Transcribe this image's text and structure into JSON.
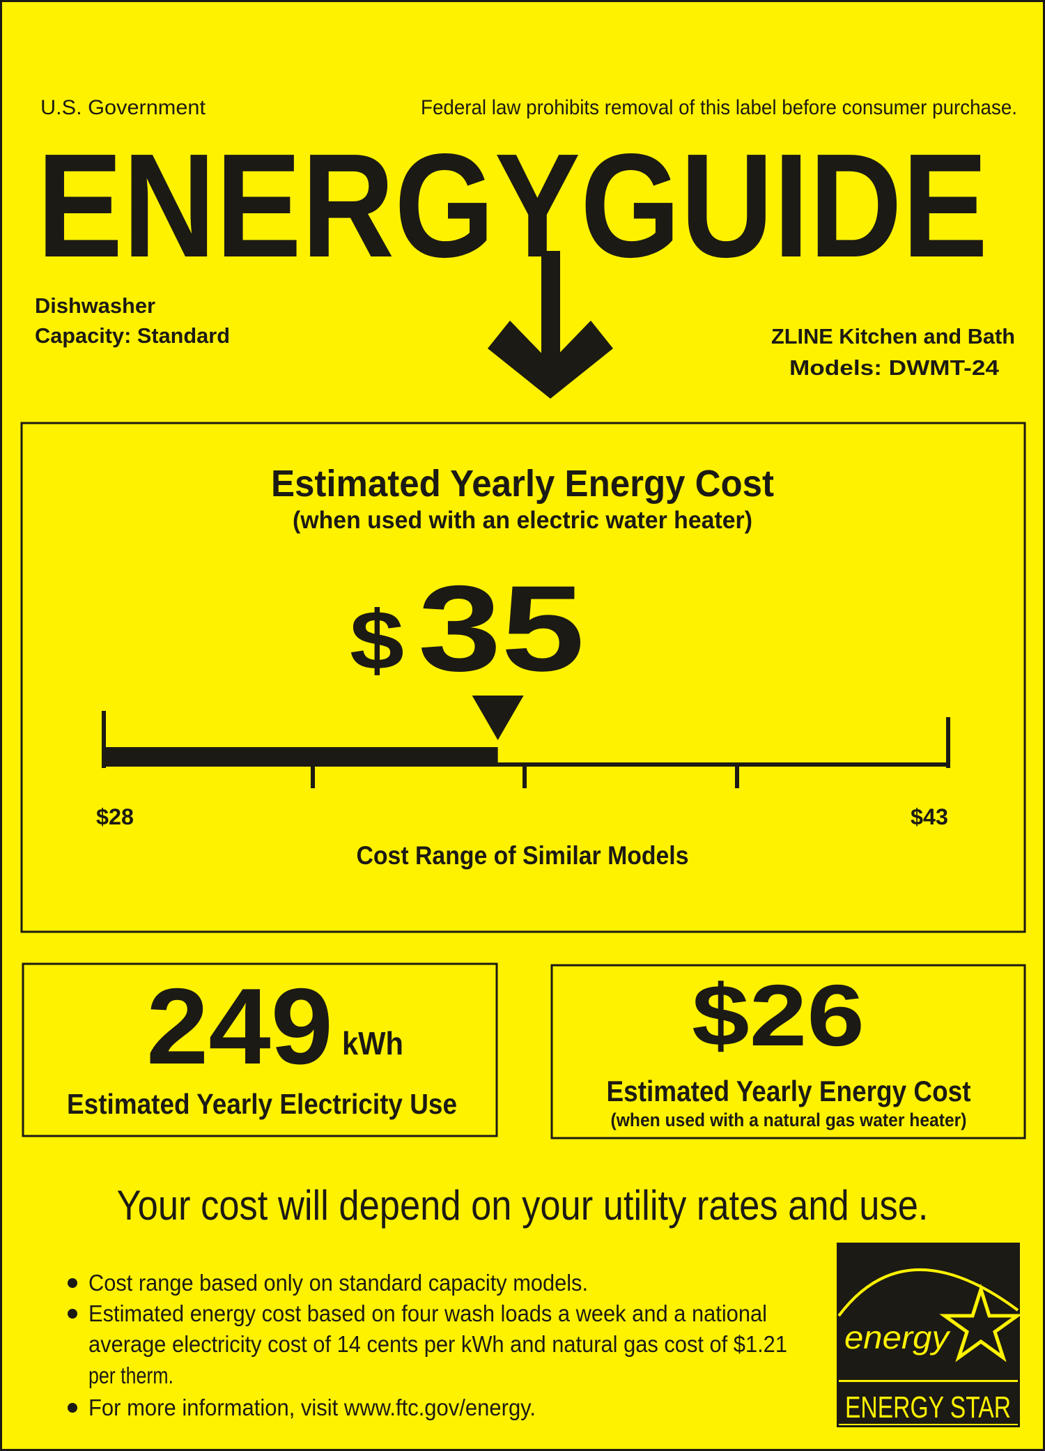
{
  "header": {
    "issuer": "U.S. Government",
    "notice": "Federal law prohibits removal of this label before consumer purchase.",
    "title": "ENERGYGUIDE"
  },
  "appliance": {
    "type": "Dishwasher",
    "capacity": "Capacity: Standard",
    "manufacturer": "ZLINE Kitchen and Bath",
    "models": "Models: DWMT-24"
  },
  "main_cost": {
    "heading": "Estimated Yearly Energy Cost",
    "subheading": "(when used with an electric water heater)",
    "currency": "$",
    "value": "35",
    "range_min_label": "$28",
    "range_max_label": "$43",
    "range_min": 28,
    "range_max": 43,
    "current": 35,
    "range_caption": "Cost Range of Similar Models"
  },
  "electricity": {
    "value": "249",
    "unit": "kWh",
    "caption": "Estimated Yearly Electricity Use"
  },
  "gas_cost": {
    "value": "$26",
    "caption": "Estimated Yearly Energy Cost",
    "subcaption": "(when used with a natural gas water heater)"
  },
  "disclaimer": "Your cost will depend on your utility rates and use.",
  "notes": [
    "Cost range based only on standard capacity models.",
    "Estimated energy cost based on four wash loads a week and a national",
    "average electricity cost of 14 cents per kWh and natural gas cost of $1.21",
    "per therm.",
    "For more information, visit www.ftc.gov/energy."
  ],
  "energy_star": {
    "script": "energy",
    "label": "ENERGY STAR"
  },
  "colors": {
    "background": "#fff200",
    "ink": "#1c1a14"
  }
}
